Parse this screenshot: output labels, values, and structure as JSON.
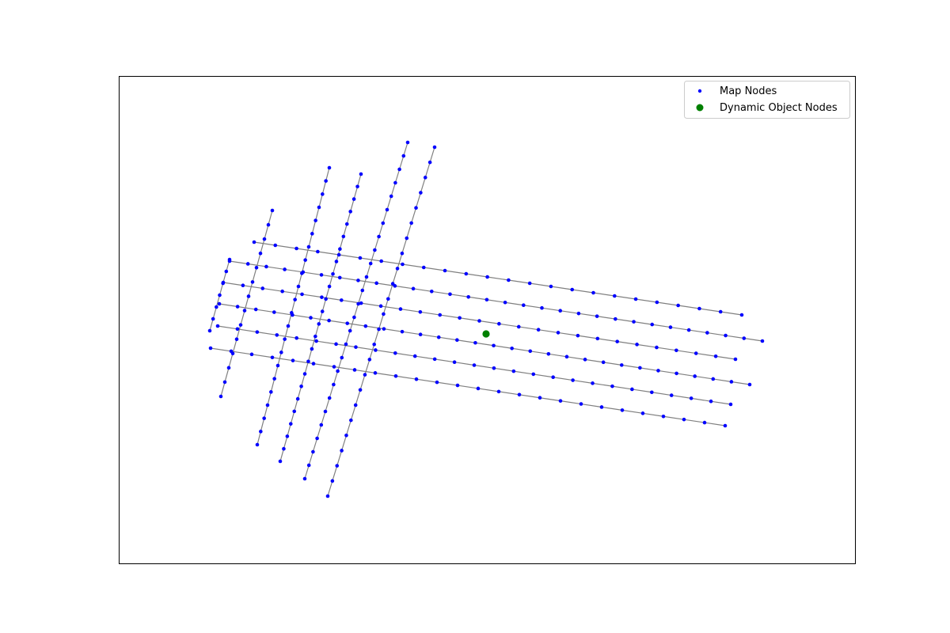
{
  "chart_data": {
    "type": "scatter",
    "title": "",
    "xlabel": "",
    "ylabel": "",
    "show_axes_ticks": false,
    "grid": false,
    "legend_position": "upper-right",
    "xlim": [
      0,
      930
    ],
    "ylim": [
      0,
      616
    ],
    "colors": {
      "map_nodes": "#0000ff",
      "dynamic_object_nodes": "#008000",
      "edges": "#808080",
      "frame": "#000000"
    },
    "legend": [
      {
        "name": "Map Nodes",
        "marker": "small-dot",
        "color": "#0000ff"
      },
      {
        "name": "Dynamic Object Nodes",
        "marker": "large-dot",
        "color": "#008000"
      }
    ],
    "lanes": [
      {
        "start": [
          116,
          344
        ],
        "end": [
          766,
          442
        ],
        "count": 26
      },
      {
        "start": [
          125,
          316
        ],
        "end": [
          773,
          415
        ],
        "count": 27
      },
      {
        "start": [
          127,
          288
        ],
        "end": [
          797,
          390
        ],
        "count": 30
      },
      {
        "start": [
          132,
          261
        ],
        "end": [
          779,
          358
        ],
        "count": 27
      },
      {
        "start": [
          140,
          234
        ],
        "end": [
          813,
          335
        ],
        "count": 30
      },
      {
        "start": [
          171,
          210
        ],
        "end": [
          787,
          302
        ],
        "count": 24
      },
      {
        "start": [
          264,
          531
        ],
        "end": [
          399,
          90
        ],
        "count": 24
      },
      {
        "start": [
          235,
          509
        ],
        "end": [
          365,
          84
        ],
        "count": 26
      },
      {
        "start": [
          204,
          487
        ],
        "end": [
          306,
          124
        ],
        "count": 24
      },
      {
        "start": [
          175,
          466
        ],
        "end": [
          266,
          116
        ],
        "count": 22
      },
      {
        "start": [
          129,
          405
        ],
        "end": [
          194,
          170
        ],
        "count": 14
      },
      {
        "start": [
          115,
          322
        ],
        "end": [
          140,
          232
        ],
        "count": 7
      }
    ],
    "dynamic_objects": [
      {
        "x": 464,
        "y": 326
      }
    ]
  }
}
